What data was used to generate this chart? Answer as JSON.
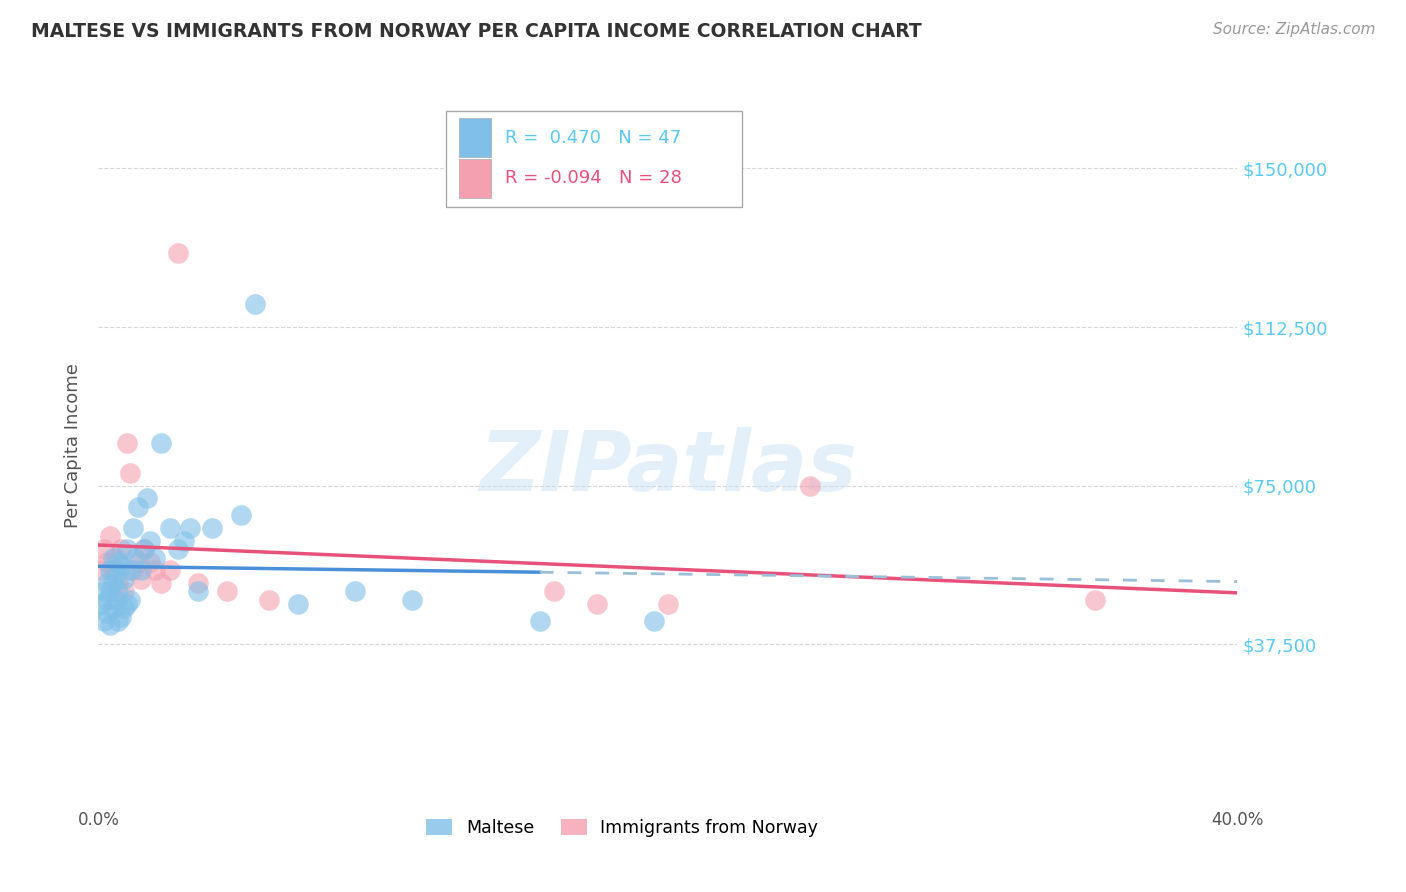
{
  "title": "MALTESE VS IMMIGRANTS FROM NORWAY PER CAPITA INCOME CORRELATION CHART",
  "source": "Source: ZipAtlas.com",
  "ylabel": "Per Capita Income",
  "xlim": [
    0.0,
    0.4
  ],
  "ylim": [
    0,
    168750
  ],
  "yticks": [
    0,
    37500,
    75000,
    112500,
    150000
  ],
  "ytick_labels_right": [
    "",
    "$37,500",
    "$75,000",
    "$112,500",
    "$150,000"
  ],
  "xtick_positions": [
    0.0,
    0.05,
    0.1,
    0.15,
    0.2,
    0.25,
    0.3,
    0.35,
    0.4
  ],
  "xtick_labels": [
    "0.0%",
    "",
    "",
    "",
    "",
    "",
    "",
    "",
    "40.0%"
  ],
  "legend_label1": "Maltese",
  "legend_label2": "Immigrants from Norway",
  "blue_color": "#7fbfe8",
  "pink_color": "#f4a0b0",
  "blue_line_color": "#4a90d9",
  "pink_line_color": "#e8527a",
  "dashed_color": "#9abfda",
  "grid_color": "#cccccc",
  "title_color": "#333333",
  "ylabel_color": "#555555",
  "ytick_color": "#5bc8f5",
  "R_blue": 0.47,
  "N_blue": 47,
  "R_pink": -0.094,
  "N_pink": 28,
  "watermark": "ZIPatlas",
  "background_color": "#ffffff",
  "blue_x": [
    0.001,
    0.002,
    0.002,
    0.003,
    0.003,
    0.003,
    0.004,
    0.004,
    0.004,
    0.005,
    0.005,
    0.005,
    0.006,
    0.006,
    0.007,
    0.007,
    0.007,
    0.008,
    0.008,
    0.009,
    0.009,
    0.01,
    0.01,
    0.011,
    0.011,
    0.012,
    0.013,
    0.014,
    0.015,
    0.016,
    0.017,
    0.018,
    0.02,
    0.022,
    0.025,
    0.028,
    0.03,
    0.032,
    0.035,
    0.04,
    0.05,
    0.055,
    0.07,
    0.09,
    0.11,
    0.155,
    0.195
  ],
  "blue_y": [
    47000,
    43000,
    50000,
    45000,
    48000,
    52000,
    42000,
    50000,
    55000,
    46000,
    52000,
    58000,
    48000,
    54000,
    43000,
    50000,
    57000,
    44000,
    56000,
    46000,
    53000,
    47000,
    60000,
    48000,
    55000,
    65000,
    58000,
    70000,
    55000,
    60000,
    72000,
    62000,
    58000,
    85000,
    65000,
    60000,
    62000,
    65000,
    50000,
    65000,
    68000,
    118000,
    47000,
    50000,
    48000,
    43000,
    43000
  ],
  "pink_x": [
    0.001,
    0.002,
    0.003,
    0.004,
    0.005,
    0.006,
    0.007,
    0.008,
    0.009,
    0.01,
    0.011,
    0.012,
    0.014,
    0.015,
    0.016,
    0.018,
    0.02,
    0.022,
    0.025,
    0.028,
    0.035,
    0.045,
    0.06,
    0.16,
    0.175,
    0.2,
    0.25,
    0.35
  ],
  "pink_y": [
    55000,
    60000,
    57000,
    63000,
    55000,
    58000,
    52000,
    60000,
    50000,
    85000,
    78000,
    55000,
    57000,
    53000,
    60000,
    57000,
    55000,
    52000,
    55000,
    130000,
    52000,
    50000,
    48000,
    50000,
    47000,
    47000,
    75000,
    48000
  ]
}
